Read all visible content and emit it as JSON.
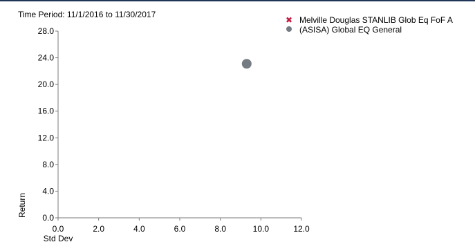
{
  "header": {
    "period_label": "Time Period: 11/1/2016 to 11/30/2017"
  },
  "colors": {
    "fund_marker": "#c0173f",
    "category_marker": "#757b83",
    "axis": "#7a7a7a",
    "top_rule": "#1f3558"
  },
  "legend": [
    {
      "label": "Melville Douglas STANLIB Glob Eq FoF A",
      "marker": "x-mark-icon",
      "color": "#c0173f"
    },
    {
      "label": "(ASISA) Global EQ General",
      "marker": "circle-dot-icon",
      "color": "#757b83"
    }
  ],
  "chart_data": {
    "type": "scatter",
    "title": "",
    "xlabel": "Std Dev",
    "ylabel": "Return",
    "xlim": [
      0,
      12
    ],
    "ylim": [
      0,
      28
    ],
    "xticks": [
      "0.0",
      "2.0",
      "4.0",
      "6.0",
      "8.0",
      "10.0",
      "12.0"
    ],
    "yticks": [
      "0.0",
      "4.0",
      "8.0",
      "12.0",
      "16.0",
      "20.0",
      "24.0",
      "28.0"
    ],
    "x_tick_values": [
      0,
      2,
      4,
      6,
      8,
      10,
      12
    ],
    "y_tick_values": [
      0,
      4,
      8,
      12,
      16,
      20,
      24,
      28
    ],
    "grid": false,
    "legend_position": "top-right",
    "series": [
      {
        "name": "Melville Douglas STANLIB Glob Eq FoF A",
        "marker": "x",
        "color": "#c0173f",
        "points": []
      },
      {
        "name": "(ASISA) Global EQ General",
        "marker": "circle",
        "color": "#757b83",
        "points": [
          {
            "x": 9.3,
            "y": 23.1
          }
        ]
      }
    ]
  }
}
